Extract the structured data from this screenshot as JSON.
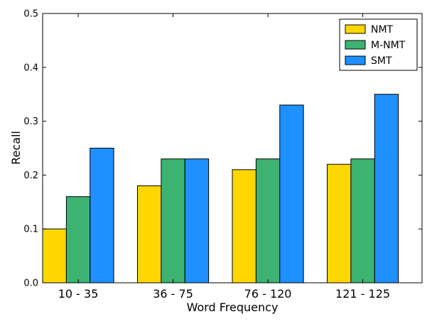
{
  "chart_data": {
    "type": "bar",
    "categories": [
      "10 - 35",
      "36 - 75",
      "76 - 120",
      "121 - 125"
    ],
    "series": [
      {
        "name": "NMT",
        "values": [
          0.1,
          0.18,
          0.21,
          0.22
        ],
        "color": "#FFD700"
      },
      {
        "name": "M-NMT",
        "values": [
          0.16,
          0.23,
          0.23,
          0.23
        ],
        "color": "#3CB371"
      },
      {
        "name": "SMT",
        "values": [
          0.25,
          0.23,
          0.33,
          0.35
        ],
        "color": "#1E90FF"
      }
    ],
    "xlabel": "Word Frequency",
    "ylabel": "Recall",
    "ylim": [
      0,
      0.5
    ],
    "yticks": [
      "0.0",
      "0.1",
      "0.2",
      "0.3",
      "0.4",
      "0.5"
    ],
    "grid": false,
    "legend_position": "top-right"
  }
}
